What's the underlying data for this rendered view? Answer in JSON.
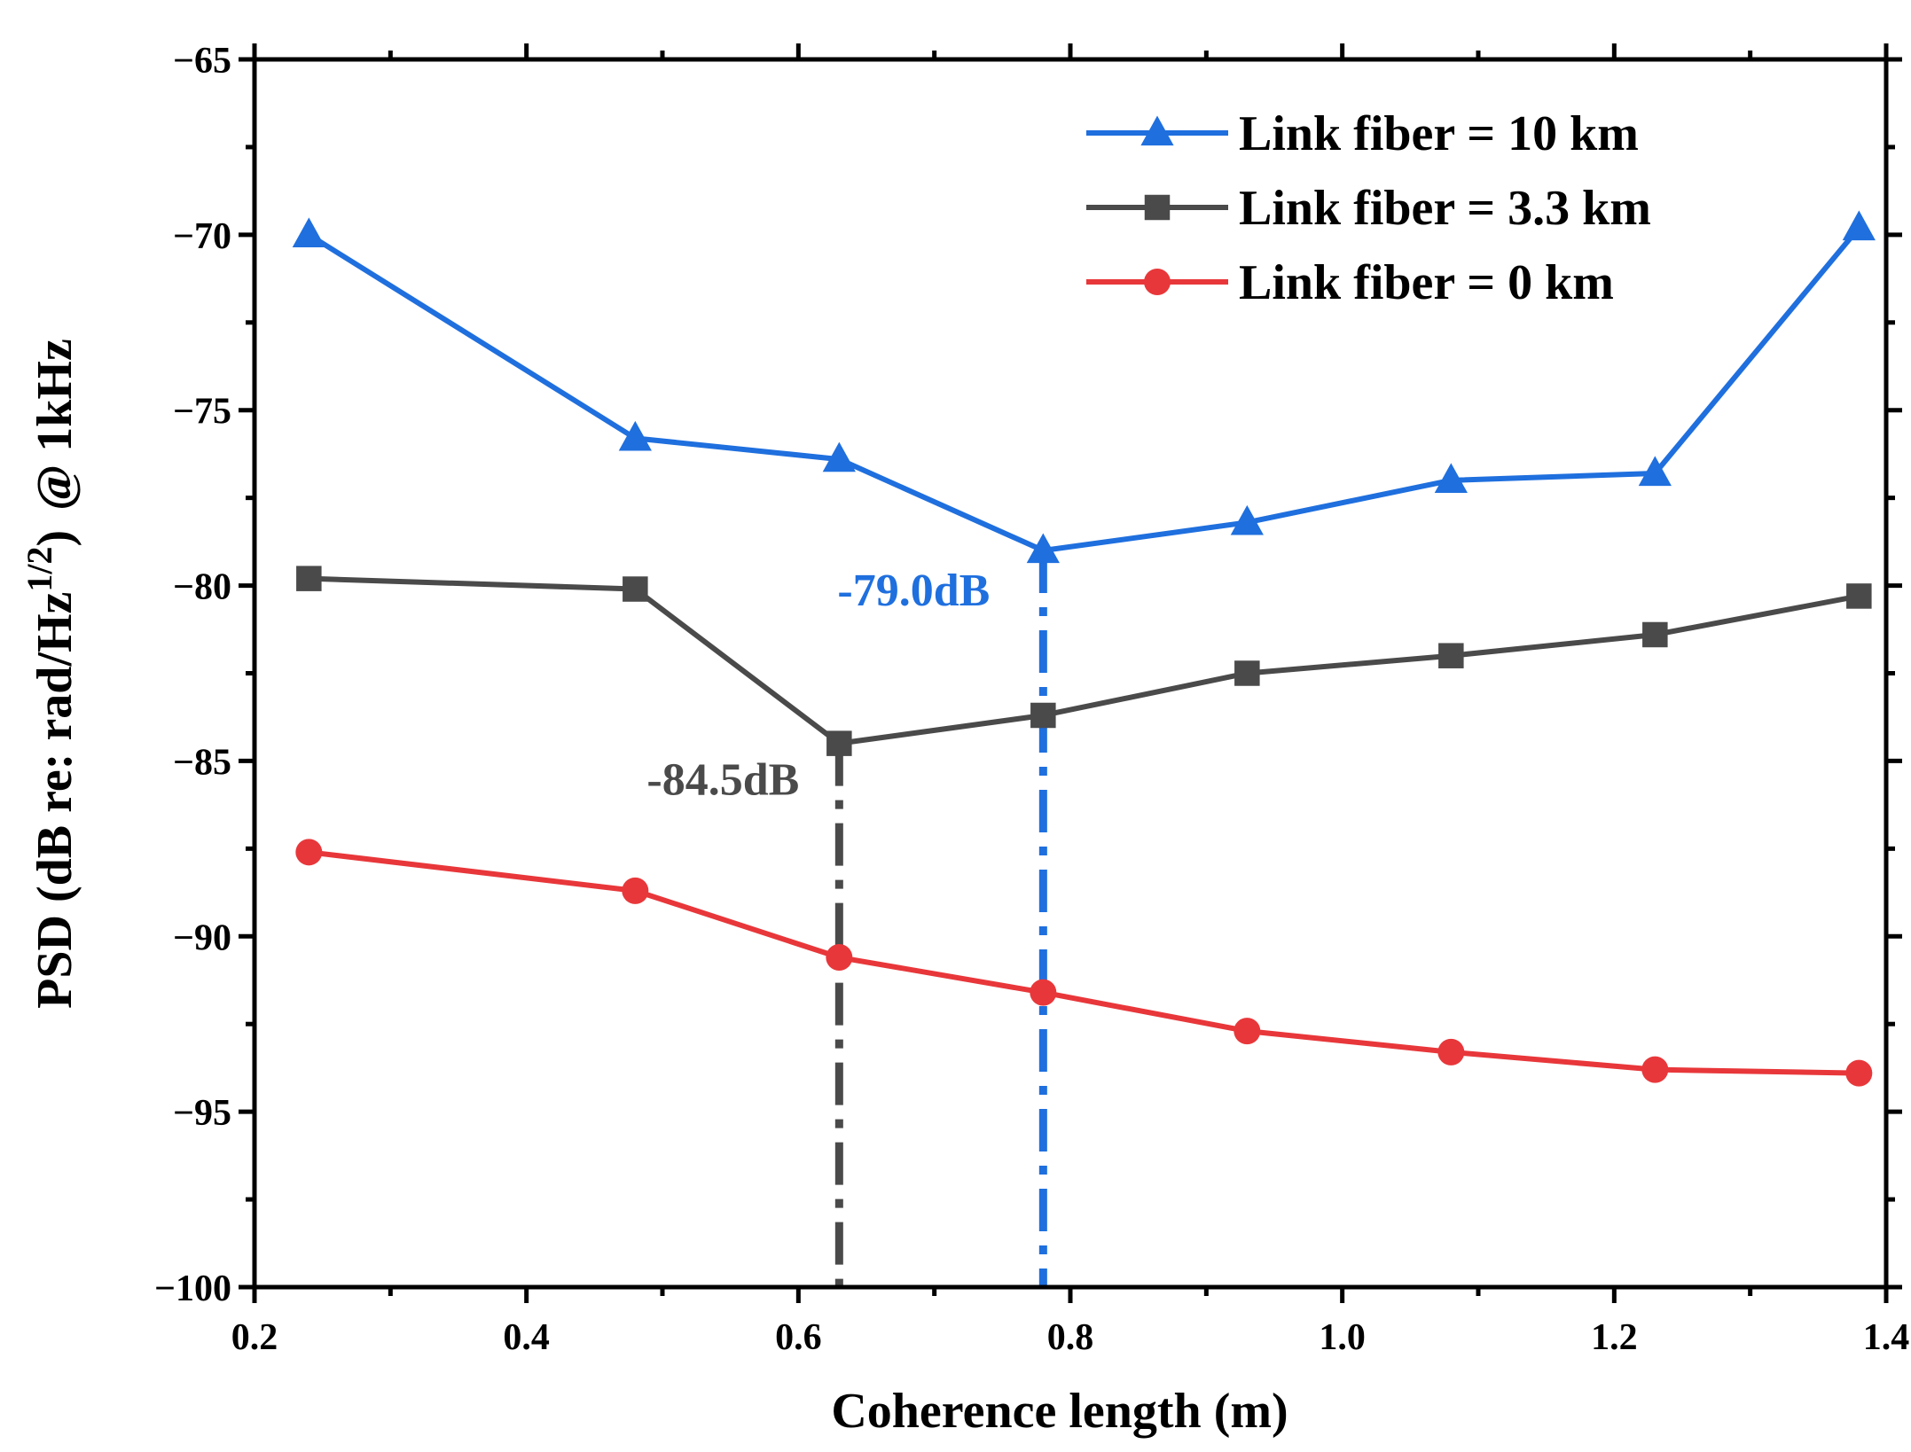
{
  "chart_data": {
    "type": "line",
    "title": "",
    "xlabel": "Coherence length (m)",
    "ylabel": {
      "main": "PSD (dB re: rad/Hz",
      "sup": "1/2",
      "close": ")",
      "suffix": "@ 1kHz"
    },
    "xlim": [
      0.2,
      1.4
    ],
    "ylim": [
      -100,
      -65
    ],
    "xticks": [
      0.2,
      0.4,
      0.6,
      0.8,
      1.0,
      1.2,
      1.4
    ],
    "xtick_labels": [
      "0.2",
      "0.4",
      "0.6",
      "0.8",
      "1.0",
      "1.2",
      "1.4"
    ],
    "yticks": [
      -65,
      -70,
      -75,
      -80,
      -85,
      -90,
      -95,
      -100
    ],
    "ytick_labels": [
      "−65",
      "−70",
      "−75",
      "−80",
      "−85",
      "−90",
      "−95",
      "−100"
    ],
    "grid": false,
    "legend_position": "top-right",
    "series": [
      {
        "name": "Link fiber = 10 km",
        "color": "#1f6fde",
        "marker": "triangle",
        "x": [
          0.24,
          0.48,
          0.63,
          0.78,
          0.93,
          1.08,
          1.23,
          1.38
        ],
        "y": [
          -70.0,
          -75.8,
          -76.4,
          -79.0,
          -78.2,
          -77.0,
          -76.8,
          -69.8
        ]
      },
      {
        "name": "Link fiber = 3.3 km",
        "color": "#4a4a4a",
        "marker": "square",
        "x": [
          0.24,
          0.48,
          0.63,
          0.78,
          0.93,
          1.08,
          1.23,
          1.38
        ],
        "y": [
          -79.8,
          -80.1,
          -84.5,
          -83.7,
          -82.5,
          -82.0,
          -81.4,
          -80.3
        ]
      },
      {
        "name": "Link fiber = 0 km",
        "color": "#e8373a",
        "marker": "circle",
        "x": [
          0.24,
          0.48,
          0.63,
          0.78,
          0.93,
          1.08,
          1.23,
          1.38
        ],
        "y": [
          -87.6,
          -88.7,
          -90.6,
          -91.6,
          -92.7,
          -93.3,
          -93.8,
          -93.9
        ]
      }
    ],
    "annotations": [
      {
        "text": "-79.0dB",
        "x": 0.78,
        "y": -79.0,
        "color": "#1f6fde"
      },
      {
        "text": "-84.5dB",
        "x": 0.63,
        "y": -84.5,
        "color": "#4a4a4a"
      }
    ]
  }
}
